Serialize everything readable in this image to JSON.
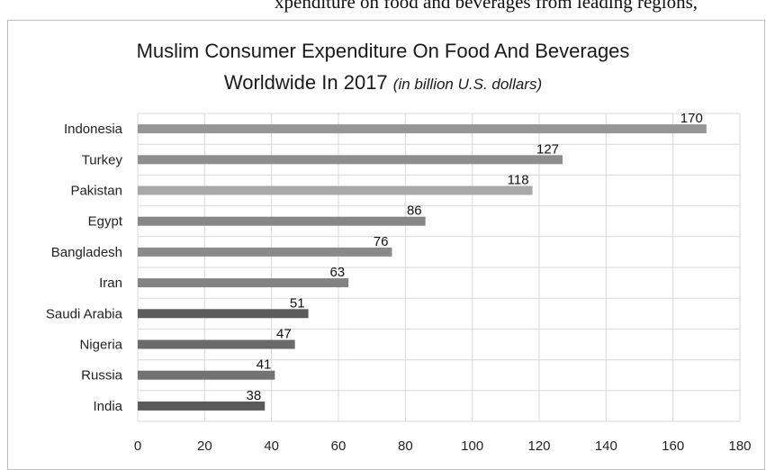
{
  "page": {
    "top_fragment_text": "xpenditure on food and beverages from leading regions,"
  },
  "chart_data": {
    "type": "bar",
    "orientation": "horizontal",
    "title_main": "Muslim Consumer Expenditure On Food And Beverages",
    "title_second": "Worldwide In 2017",
    "title_unit": "(in billion U.S. dollars)",
    "categories": [
      "Indonesia",
      "Turkey",
      "Pakistan",
      "Egypt",
      "Bangladesh",
      "Iran",
      "Saudi Arabia",
      "Nigeria",
      "Russia",
      "India"
    ],
    "values": [
      170,
      127,
      118,
      86,
      76,
      63,
      51,
      47,
      41,
      38
    ],
    "bar_colors": [
      "#969696",
      "#8e8e8e",
      "#a8a8a8",
      "#868686",
      "#8a8a8a",
      "#838383",
      "#5c5c5c",
      "#6a6a6a",
      "#727272",
      "#5a5a5a"
    ],
    "xlim": [
      0,
      180
    ],
    "xticks": [
      0,
      20,
      40,
      60,
      80,
      100,
      120,
      140,
      160,
      180
    ],
    "grid": true,
    "legend": "none"
  }
}
